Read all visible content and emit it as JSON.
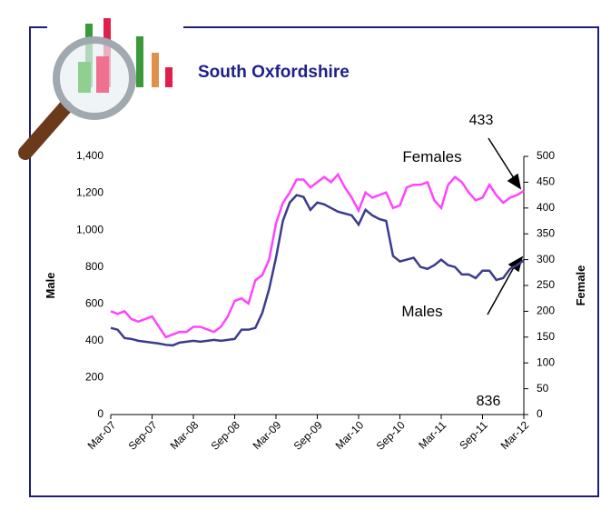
{
  "chart_data": {
    "type": "line",
    "title": "South Oxfordshire",
    "categories": [
      "Mar-07",
      null,
      null,
      null,
      null,
      null,
      "Sep-07",
      null,
      null,
      null,
      null,
      null,
      "Mar-08",
      null,
      null,
      null,
      null,
      null,
      "Sep-08",
      null,
      null,
      null,
      null,
      null,
      "Mar-09",
      null,
      null,
      null,
      null,
      null,
      "Sep-09",
      null,
      null,
      null,
      null,
      null,
      "Mar-10",
      null,
      null,
      null,
      null,
      null,
      "Sep-10",
      null,
      null,
      null,
      null,
      null,
      "Mar-11",
      null,
      null,
      null,
      null,
      null,
      "Sep-11",
      null,
      null,
      null,
      null,
      null,
      "Mar-12"
    ],
    "series": [
      {
        "name": "Males",
        "color": "#3c3c8c",
        "values": [
          470,
          460,
          415,
          410,
          400,
          395,
          390,
          385,
          378,
          375,
          390,
          395,
          400,
          395,
          400,
          405,
          400,
          405,
          410,
          460,
          460,
          470,
          550,
          680,
          850,
          1050,
          1150,
          1190,
          1180,
          1110,
          1150,
          1140,
          1120,
          1100,
          1090,
          1080,
          1030,
          1110,
          1080,
          1060,
          1050,
          860,
          830,
          840,
          850,
          800,
          790,
          810,
          840,
          810,
          800,
          760,
          760,
          740,
          780,
          780,
          730,
          740,
          790,
          810,
          836
        ]
      },
      {
        "name": "Females",
        "color": "#ff44ff",
        "axis": "y2",
        "values": [
          200,
          195,
          200,
          185,
          180,
          185,
          190,
          170,
          150,
          155,
          160,
          160,
          170,
          170,
          165,
          160,
          170,
          190,
          220,
          225,
          215,
          260,
          270,
          300,
          370,
          410,
          430,
          455,
          455,
          440,
          450,
          460,
          450,
          465,
          440,
          420,
          395,
          430,
          420,
          425,
          430,
          400,
          405,
          440,
          445,
          445,
          450,
          415,
          400,
          445,
          460,
          450,
          430,
          415,
          420,
          445,
          425,
          410,
          420,
          425,
          433
        ]
      }
    ],
    "ylabel": "Male",
    "y2label": "Female",
    "ylim": [
      0,
      1400
    ],
    "yticks": [
      0,
      200,
      400,
      600,
      800,
      {
        "value": 1000,
        "label": "1,000"
      },
      {
        "value": 1200,
        "label": "1,200"
      },
      {
        "value": 1400,
        "label": "1,400"
      }
    ],
    "y2lim": [
      0,
      500
    ],
    "y2ticks": [
      0,
      50,
      100,
      150,
      200,
      250,
      300,
      350,
      400,
      450,
      500
    ],
    "annotations": [
      "433",
      "Females",
      "Males",
      "836"
    ]
  }
}
